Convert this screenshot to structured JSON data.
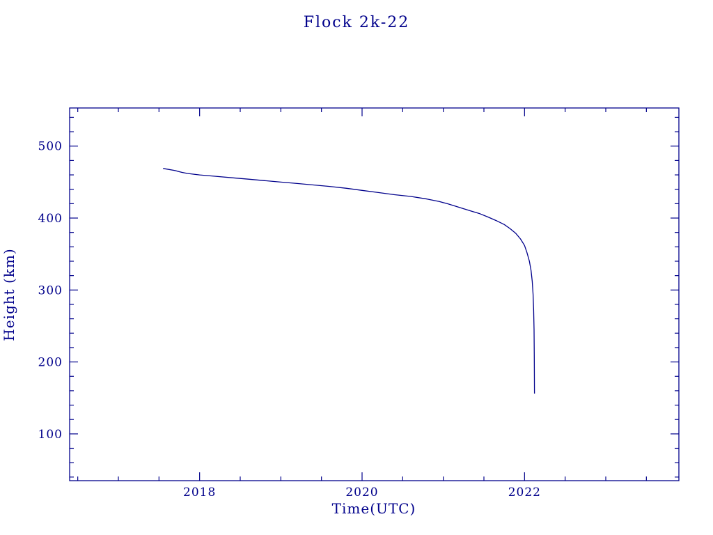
{
  "page": {
    "background": "#ffffff",
    "accent": "#00008b"
  },
  "chart_data": {
    "type": "line",
    "title": "Flock 2k-22",
    "xlabel": "Time(UTC)",
    "ylabel": "Height (km)",
    "xlim": [
      2016.4,
      2023.9
    ],
    "ylim": [
      35,
      553
    ],
    "x_major_ticks": [
      2018,
      2020,
      2022
    ],
    "x_tick_labels": [
      "2018",
      "2020",
      "2022"
    ],
    "x_minor_step": 0.5,
    "y_major_ticks": [
      100,
      200,
      300,
      400,
      500
    ],
    "y_tick_labels": [
      "100",
      "200",
      "300",
      "400",
      "500"
    ],
    "y_minor_step": 20,
    "grid": false,
    "legend": "none",
    "line_color": "#00008b",
    "series": [
      {
        "name": "Flock 2k-22",
        "points": [
          [
            2017.55,
            469
          ],
          [
            2017.6,
            468
          ],
          [
            2017.7,
            466
          ],
          [
            2017.78,
            463.5
          ],
          [
            2017.85,
            462
          ],
          [
            2018.0,
            460
          ],
          [
            2018.2,
            458
          ],
          [
            2018.4,
            456
          ],
          [
            2018.6,
            454
          ],
          [
            2018.8,
            452
          ],
          [
            2019.0,
            450
          ],
          [
            2019.2,
            448
          ],
          [
            2019.4,
            446
          ],
          [
            2019.6,
            444
          ],
          [
            2019.8,
            441.5
          ],
          [
            2020.0,
            438.5
          ],
          [
            2020.2,
            435.5
          ],
          [
            2020.4,
            432.5
          ],
          [
            2020.6,
            430
          ],
          [
            2020.8,
            426.5
          ],
          [
            2020.95,
            423
          ],
          [
            2021.05,
            420
          ],
          [
            2021.15,
            416.5
          ],
          [
            2021.25,
            413
          ],
          [
            2021.35,
            409.5
          ],
          [
            2021.45,
            406
          ],
          [
            2021.55,
            401.5
          ],
          [
            2021.65,
            396.5
          ],
          [
            2021.75,
            391
          ],
          [
            2021.82,
            385.5
          ],
          [
            2021.89,
            379
          ],
          [
            2021.95,
            371
          ],
          [
            2022.0,
            362
          ],
          [
            2022.03,
            352
          ],
          [
            2022.06,
            340
          ],
          [
            2022.08,
            327
          ],
          [
            2022.095,
            312
          ],
          [
            2022.105,
            294
          ],
          [
            2022.112,
            272
          ],
          [
            2022.117,
            245
          ],
          [
            2022.12,
            210
          ],
          [
            2022.122,
            156
          ]
        ]
      }
    ]
  }
}
